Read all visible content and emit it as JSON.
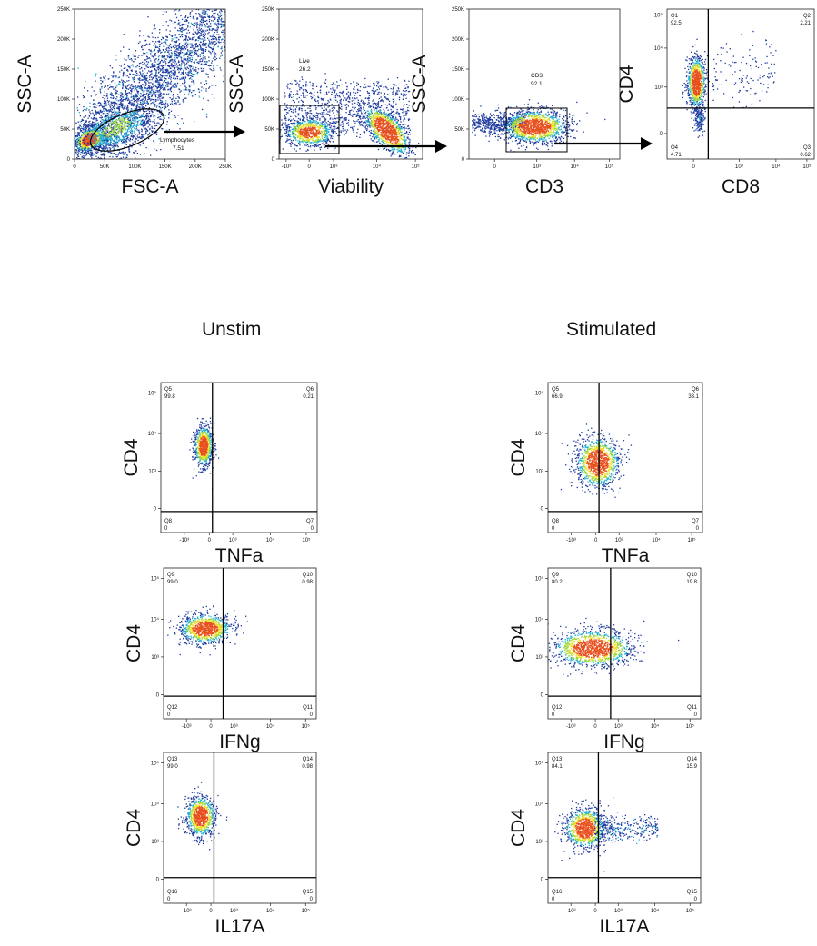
{
  "conditions": {
    "unstim": "Unstim",
    "stimulated": "Stimulated"
  },
  "colors": {
    "low": "#1e3a9e",
    "mid": "#1fb0cf",
    "hi1": "#9fd83c",
    "hi2": "#f2e12a",
    "hot": "#e8501f",
    "gate": "#000000"
  },
  "chart_data": [
    {
      "id": "p1",
      "type": "scatter",
      "xlabel": "FSC-A",
      "ylabel": "SSC-A",
      "x_ticks": [
        "0",
        "50K",
        "100K",
        "150K",
        "200K",
        "250K"
      ],
      "y_ticks": [
        "0",
        "50K",
        "100K",
        "150K",
        "200K",
        "250K"
      ],
      "xlim": [
        0,
        262144
      ],
      "ylim": [
        0,
        262144
      ],
      "gate": {
        "shape": "ellipse",
        "name": "Lymphocytes",
        "value": "7.51"
      }
    },
    {
      "id": "p2",
      "type": "scatter",
      "xlabel": "Viability",
      "ylabel": "SSC-A",
      "x_ticks": [
        "-10³",
        "0",
        "10³",
        "10⁴",
        "10⁵"
      ],
      "y_ticks": [
        "0",
        "50K",
        "100K",
        "150K",
        "200K",
        "250K"
      ],
      "gate": {
        "shape": "rectangle",
        "name": "Live",
        "value": "26.2"
      }
    },
    {
      "id": "p3",
      "type": "scatter",
      "xlabel": "CD3",
      "ylabel": "SSC-A",
      "x_ticks": [
        "0",
        "10³",
        "10⁴",
        "10⁵"
      ],
      "y_ticks": [
        "0",
        "50K",
        "100K",
        "150K",
        "200K",
        "250K"
      ],
      "gate": {
        "shape": "rectangle",
        "name": "CD3",
        "value": "92.1"
      }
    },
    {
      "id": "p4",
      "type": "scatter",
      "xlabel": "CD8",
      "ylabel": "CD4",
      "x_ticks": [
        "0",
        "10³",
        "10⁴",
        "10⁵"
      ],
      "y_ticks": [
        "0",
        "10³",
        "10⁴",
        "10⁵"
      ],
      "quadrants": [
        {
          "name": "Q1",
          "value": "92.5"
        },
        {
          "name": "Q2",
          "value": "2.21"
        },
        {
          "name": "Q3",
          "value": "0.62"
        },
        {
          "name": "Q4",
          "value": "4.71"
        }
      ]
    },
    {
      "id": "u1",
      "type": "scatter",
      "xlabel": "TNFa",
      "ylabel": "CD4",
      "x_ticks": [
        "-10³",
        "0",
        "10³",
        "10⁴",
        "10⁵"
      ],
      "y_ticks": [
        "0",
        "10³",
        "10⁴",
        "10⁵"
      ],
      "quadrants": [
        {
          "name": "Q5",
          "value": "99.8"
        },
        {
          "name": "Q6",
          "value": "0.21"
        },
        {
          "name": "Q7",
          "value": "0"
        },
        {
          "name": "Q8",
          "value": "0"
        }
      ]
    },
    {
      "id": "s1",
      "type": "scatter",
      "xlabel": "TNFa",
      "ylabel": "CD4",
      "x_ticks": [
        "-10³",
        "0",
        "10³",
        "10⁴",
        "10⁵"
      ],
      "y_ticks": [
        "0",
        "10³",
        "10⁴",
        "10⁵"
      ],
      "quadrants": [
        {
          "name": "Q5",
          "value": "66.9"
        },
        {
          "name": "Q6",
          "value": "33.1"
        },
        {
          "name": "Q7",
          "value": "0"
        },
        {
          "name": "Q8",
          "value": "0"
        }
      ]
    },
    {
      "id": "u2",
      "type": "scatter",
      "xlabel": "IFNg",
      "ylabel": "CD4",
      "x_ticks": [
        "-10³",
        "0",
        "10³",
        "10⁴",
        "10⁵"
      ],
      "y_ticks": [
        "0",
        "10³",
        "10⁴",
        "10⁵"
      ],
      "quadrants": [
        {
          "name": "Q9",
          "value": "99.0"
        },
        {
          "name": "Q10",
          "value": "0.98"
        },
        {
          "name": "Q11",
          "value": "0"
        },
        {
          "name": "Q12",
          "value": "0"
        }
      ]
    },
    {
      "id": "s2",
      "type": "scatter",
      "xlabel": "IFNg",
      "ylabel": "CD4",
      "x_ticks": [
        "-10³",
        "0",
        "10³",
        "10⁴",
        "10⁵"
      ],
      "y_ticks": [
        "0",
        "10³",
        "10⁴",
        "10⁵"
      ],
      "quadrants": [
        {
          "name": "Q9",
          "value": "80.2"
        },
        {
          "name": "Q10",
          "value": "19.8"
        },
        {
          "name": "Q11",
          "value": "0"
        },
        {
          "name": "Q12",
          "value": "0"
        }
      ]
    },
    {
      "id": "u3",
      "type": "scatter",
      "xlabel": "IL17A",
      "ylabel": "CD4",
      "x_ticks": [
        "-10³",
        "0",
        "10³",
        "10⁴",
        "10⁵"
      ],
      "y_ticks": [
        "0",
        "10³",
        "10⁴",
        "10⁵"
      ],
      "quadrants": [
        {
          "name": "Q13",
          "value": "99.0"
        },
        {
          "name": "Q14",
          "value": "0.98"
        },
        {
          "name": "Q15",
          "value": "0"
        },
        {
          "name": "Q16",
          "value": "0"
        }
      ]
    },
    {
      "id": "s3",
      "type": "scatter",
      "xlabel": "IL17A",
      "ylabel": "CD4",
      "x_ticks": [
        "-10³",
        "0",
        "10³",
        "10⁴",
        "10⁵"
      ],
      "y_ticks": [
        "0",
        "10³",
        "10⁴",
        "10⁵"
      ],
      "quadrants": [
        {
          "name": "Q13",
          "value": "84.1"
        },
        {
          "name": "Q14",
          "value": "15.9"
        },
        {
          "name": "Q15",
          "value": "0"
        },
        {
          "name": "Q16",
          "value": "0"
        }
      ]
    }
  ]
}
